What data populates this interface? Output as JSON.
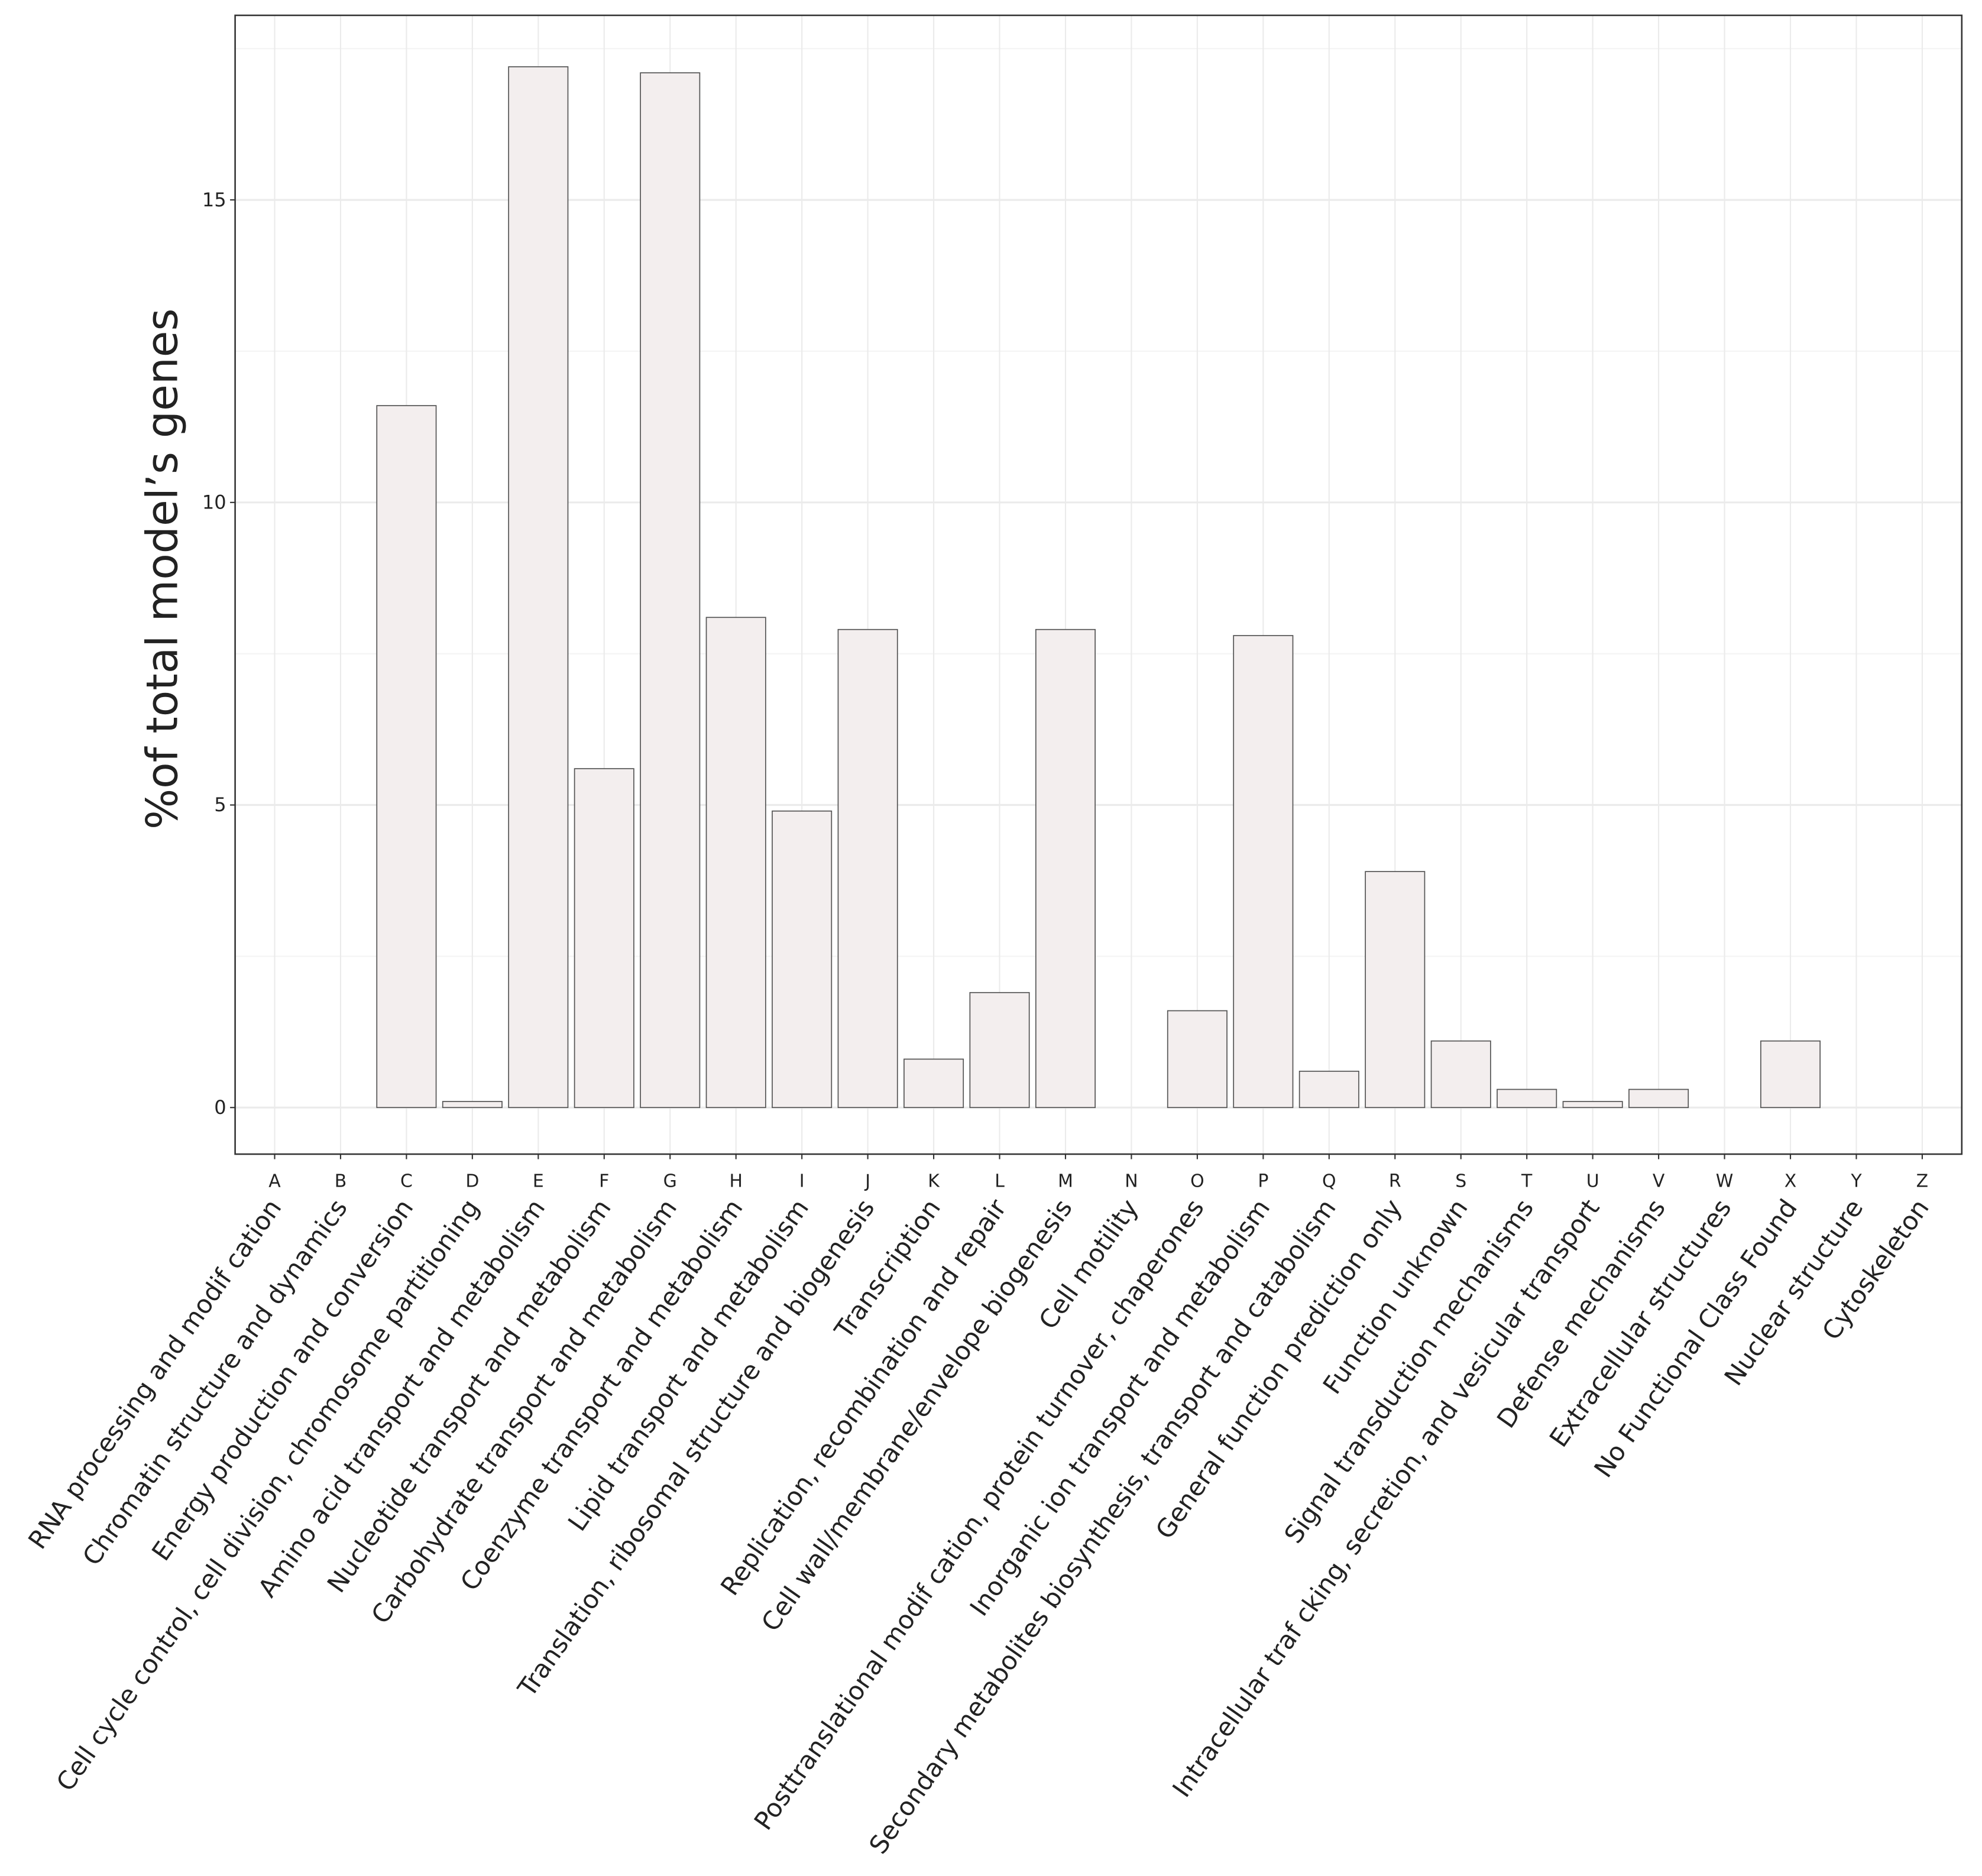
{
  "chart_data": {
    "type": "bar",
    "y_label": "%of total model’s genes",
    "categories": [
      "A",
      "B",
      "C",
      "D",
      "E",
      "F",
      "G",
      "H",
      "I",
      "J",
      "K",
      "L",
      "M",
      "N",
      "O",
      "P",
      "Q",
      "R",
      "S",
      "T",
      "U",
      "V",
      "W",
      "X",
      "Y",
      "Z"
    ],
    "category_names": [
      "RNA processing and modif cation",
      "Chromatin structure and dynamics",
      "Energy production and conversion",
      "Cell cycle control, cell division, chromosome partitioning",
      "Amino acid transport and metabolism",
      "Nucleotide transport and metabolism",
      "Carbohydrate transport and metabolism",
      "Coenzyme transport and metabolism",
      "Lipid transport and metabolism",
      "Translation, ribosomal structure and biogenesis",
      "Transcription",
      "Replication, recombination and repair",
      "Cell wall/membrane/envelope biogenesis",
      "Cell motility",
      "Posttranslational modif cation, protein turnover, chaperones",
      "Inorganic ion transport and metabolism",
      "Secondary metabolites biosynthesis, transport and catabolism",
      "General function prediction only",
      "Function unknown",
      "Signal transduction mechanisms",
      "Intracellular traf cking, secretion, and vesicular transport",
      "Defense mechanisms",
      "Extracellular structures",
      "No Functional Class Found",
      "Nuclear structure",
      "Cytoskeleton"
    ],
    "values": [
      0,
      0,
      11.6,
      0.1,
      17.2,
      5.6,
      17.1,
      8.1,
      4.9,
      7.9,
      0.8,
      1.9,
      7.9,
      0,
      1.6,
      7.8,
      0.6,
      3.9,
      1.1,
      0.3,
      0.1,
      0.3,
      0,
      1.1,
      0,
      0
    ],
    "color": "#f3eeee",
    "ylim": [
      -0.77,
      18.05
    ],
    "yticks": [
      0,
      5,
      10,
      15
    ],
    "grid": true
  }
}
